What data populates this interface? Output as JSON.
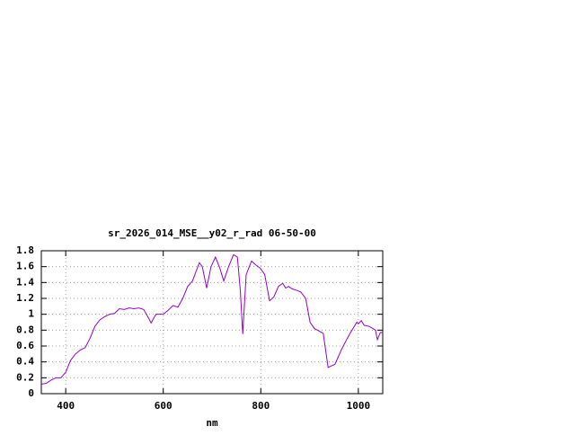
{
  "chart_data": {
    "type": "line",
    "title": "sr_2026_014_MSE__y02_r_rad 06-50-00",
    "x_label": "nm",
    "x": [
      350,
      360,
      370,
      380,
      390,
      400,
      410,
      420,
      430,
      440,
      450,
      460,
      470,
      480,
      490,
      500,
      510,
      520,
      530,
      540,
      550,
      560,
      570,
      575,
      585,
      600,
      610,
      620,
      630,
      640,
      650,
      660,
      674,
      680,
      689,
      698,
      707,
      716,
      724,
      734,
      744,
      752,
      758,
      763,
      770,
      781,
      790,
      799,
      808,
      818,
      827,
      836,
      845,
      851,
      857,
      864,
      874,
      882,
      892,
      901,
      910,
      919,
      928,
      938,
      945,
      952,
      965,
      975,
      984,
      997,
      1000,
      1006,
      1012,
      1021,
      1030,
      1035,
      1039,
      1045,
      1050
    ],
    "series": [
      {
        "name": "rad",
        "color": "#9400d3",
        "values": [
          0.12,
          0.13,
          0.17,
          0.2,
          0.2,
          0.27,
          0.42,
          0.5,
          0.55,
          0.58,
          0.7,
          0.85,
          0.93,
          0.97,
          1.0,
          1.01,
          1.07,
          1.06,
          1.08,
          1.07,
          1.08,
          1.06,
          0.95,
          0.89,
          1.0,
          1.0,
          1.05,
          1.11,
          1.09,
          1.2,
          1.35,
          1.42,
          1.65,
          1.6,
          1.33,
          1.6,
          1.72,
          1.58,
          1.42,
          1.6,
          1.75,
          1.72,
          1.3,
          0.75,
          1.5,
          1.67,
          1.62,
          1.58,
          1.5,
          1.17,
          1.22,
          1.35,
          1.39,
          1.33,
          1.35,
          1.32,
          1.3,
          1.28,
          1.2,
          0.9,
          0.82,
          0.79,
          0.76,
          0.33,
          0.35,
          0.37,
          0.55,
          0.67,
          0.77,
          0.9,
          0.88,
          0.92,
          0.86,
          0.85,
          0.82,
          0.8,
          0.68,
          0.77,
          0.77
        ]
      }
    ],
    "xlim": [
      350,
      1050
    ],
    "ylim": [
      0,
      1.8
    ],
    "xticks": [
      400,
      600,
      800,
      1000
    ],
    "yticks": [
      0,
      0.2,
      0.4,
      0.6,
      0.8,
      1,
      1.2,
      1.4,
      1.6,
      1.8
    ],
    "grid": true
  }
}
